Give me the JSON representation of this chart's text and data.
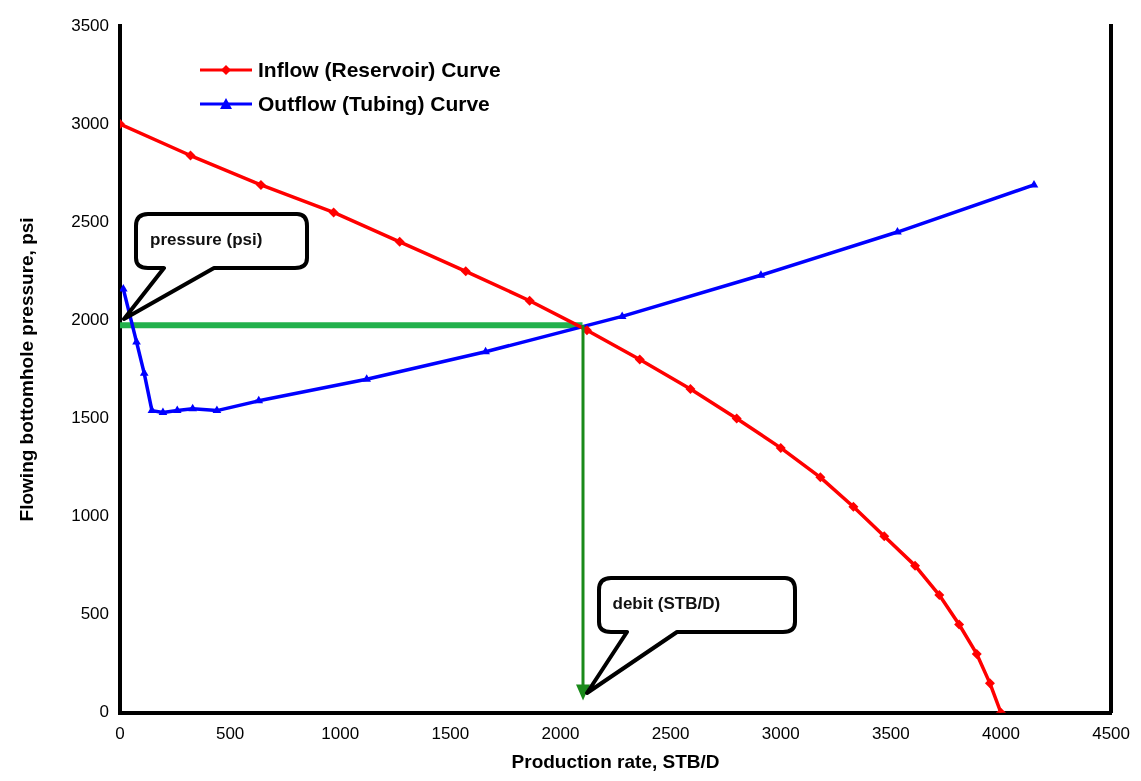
{
  "chart_data": {
    "type": "line",
    "xlabel": "Production rate, STB/D",
    "ylabel": "Flowing bottomhole pressure, psi",
    "xlim": [
      0,
      4500
    ],
    "xticks": [
      0,
      500,
      1000,
      1500,
      2000,
      2500,
      3000,
      3500,
      4000,
      4500
    ],
    "ylim": [
      0,
      3500
    ],
    "yticks": [
      0,
      500,
      1000,
      1500,
      2000,
      2500,
      3000,
      3500
    ],
    "grid": false,
    "legend": "top left",
    "line_style": "solid",
    "series": [
      {
        "name": "Inflow (Reservoir) Curve",
        "color": "#ff0000",
        "marker": "diamond",
        "x": [
          0,
          320,
          640,
          970,
          1270,
          1570,
          1860,
          2120,
          2360,
          2590,
          2800,
          3000,
          3180,
          3330,
          3470,
          3610,
          3720,
          3810,
          3890,
          3950,
          4000
        ],
        "values": [
          3000,
          2840,
          2690,
          2550,
          2400,
          2250,
          2100,
          1950,
          1800,
          1650,
          1500,
          1350,
          1200,
          1050,
          900,
          750,
          600,
          450,
          300,
          150,
          0
        ]
      },
      {
        "name": "Outflow (Tubing) Curve",
        "color": "#0000ff",
        "marker": "triangle",
        "x": [
          15,
          75,
          110,
          145,
          195,
          260,
          330,
          440,
          630,
          1120,
          1660,
          2280,
          2910,
          3530,
          4150
        ],
        "values": [
          2160,
          1890,
          1730,
          1540,
          1530,
          1540,
          1550,
          1540,
          1590,
          1700,
          1840,
          2020,
          2230,
          2450,
          2690
        ]
      },
      {
        "color": "#22b14c",
        "marker": "none",
        "x": [
          0,
          2100
        ],
        "values": [
          1975,
          1975
        ]
      }
    ],
    "annotations": [
      "pressure (psi)",
      "debit (STB/D)"
    ]
  }
}
